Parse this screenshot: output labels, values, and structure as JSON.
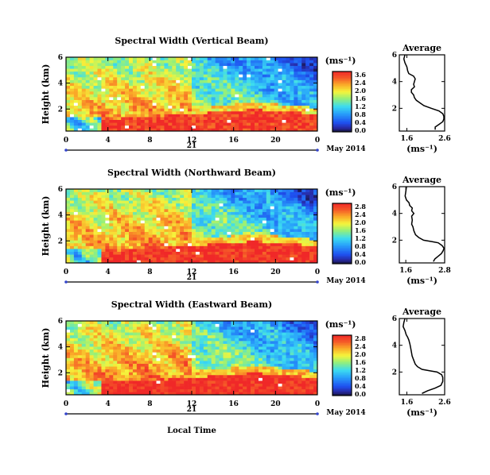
{
  "chart_data": [
    {
      "type": "heatmap",
      "title": "Spectral Width (Vertical Beam)",
      "ylabel": "Height (km)",
      "yticks": [
        "6",
        "4",
        "2"
      ],
      "ylim": [
        0.3,
        6
      ],
      "xticks": [
        "0",
        "4",
        "8",
        "12",
        "16",
        "20",
        "0"
      ],
      "xlim": [
        0,
        24
      ],
      "day_label": "21",
      "date_label": "May 2014",
      "colorbar": {
        "unit": "(ms⁻¹)",
        "ticks": [
          "3.6",
          "2.4",
          "2.0",
          "1.6",
          "1.2",
          "0.8",
          "0.4",
          "0.0"
        ]
      },
      "average": {
        "title": "Average",
        "xlabel": "(ms⁻¹)",
        "xticks": [
          "1.6",
          "2.6"
        ],
        "yticks": [
          "6",
          "4",
          "2"
        ],
        "xlim": [
          1.4,
          2.6
        ],
        "ylim": [
          0.3,
          6
        ],
        "profile": [
          [
            1.55,
            6.0
          ],
          [
            1.52,
            5.7
          ],
          [
            1.55,
            5.4
          ],
          [
            1.6,
            5.1
          ],
          [
            1.62,
            4.8
          ],
          [
            1.65,
            4.6
          ],
          [
            1.78,
            4.4
          ],
          [
            1.82,
            4.2
          ],
          [
            1.8,
            4.0
          ],
          [
            1.78,
            3.8
          ],
          [
            1.8,
            3.6
          ],
          [
            1.72,
            3.4
          ],
          [
            1.72,
            3.2
          ],
          [
            1.78,
            3.0
          ],
          [
            1.8,
            2.8
          ],
          [
            1.85,
            2.6
          ],
          [
            1.95,
            2.4
          ],
          [
            2.05,
            2.2
          ],
          [
            2.25,
            2.0
          ],
          [
            2.45,
            1.8
          ],
          [
            2.55,
            1.6
          ],
          [
            2.58,
            1.4
          ],
          [
            2.58,
            1.2
          ],
          [
            2.55,
            1.0
          ],
          [
            2.45,
            0.8
          ],
          [
            2.35,
            0.6
          ],
          [
            2.35,
            0.4
          ]
        ]
      },
      "regions": [
        {
          "x0": 3.5,
          "x1": 24,
          "y0": 0.3,
          "y1": 1.5,
          "level": 3.2,
          "note": "low-level red layer"
        },
        {
          "x0": 0,
          "x1": 12,
          "y0": 1.5,
          "y1": 4.0,
          "level": 2.4,
          "note": "mid-level orange/yellow"
        },
        {
          "x0": 12,
          "x1": 24,
          "y0": 2.0,
          "y1": 6.0,
          "level": 0.8,
          "note": "afternoon cyan/blue aloft"
        }
      ]
    },
    {
      "type": "heatmap",
      "title": "Spectral Width (Northward Beam)",
      "ylabel": "Height (km)",
      "yticks": [
        "6",
        "4",
        "2"
      ],
      "ylim": [
        0.3,
        6
      ],
      "xticks": [
        "0",
        "4",
        "8",
        "12",
        "16",
        "20",
        "0"
      ],
      "xlim": [
        0,
        24
      ],
      "day_label": "21",
      "date_label": "May 2014",
      "colorbar": {
        "unit": "(ms⁻¹)",
        "ticks": [
          "2.8",
          "2.4",
          "2.0",
          "1.6",
          "1.2",
          "0.8",
          "0.4",
          "0.0"
        ]
      },
      "average": {
        "title": "Average",
        "xlabel": "(ms⁻¹)",
        "xticks": [
          "1.6",
          "2.8"
        ],
        "yticks": [
          "6",
          "4",
          "2"
        ],
        "xlim": [
          1.4,
          2.8
        ],
        "ylim": [
          0.3,
          6
        ],
        "profile": [
          [
            1.62,
            6.0
          ],
          [
            1.6,
            5.6
          ],
          [
            1.58,
            5.3
          ],
          [
            1.62,
            5.0
          ],
          [
            1.7,
            4.8
          ],
          [
            1.72,
            4.6
          ],
          [
            1.8,
            4.4
          ],
          [
            1.78,
            4.2
          ],
          [
            1.85,
            4.0
          ],
          [
            1.78,
            3.8
          ],
          [
            1.8,
            3.5
          ],
          [
            1.78,
            3.2
          ],
          [
            1.82,
            3.0
          ],
          [
            1.85,
            2.7
          ],
          [
            1.9,
            2.4
          ],
          [
            2.0,
            2.2
          ],
          [
            2.15,
            2.0
          ],
          [
            2.4,
            1.9
          ],
          [
            2.6,
            1.8
          ],
          [
            2.72,
            1.6
          ],
          [
            2.78,
            1.4
          ],
          [
            2.75,
            1.2
          ],
          [
            2.7,
            1.0
          ],
          [
            2.6,
            0.8
          ],
          [
            2.5,
            0.6
          ],
          [
            2.45,
            0.4
          ]
        ]
      },
      "regions": [
        {
          "x0": 3.5,
          "x1": 24,
          "y0": 0.3,
          "y1": 1.6,
          "level": 2.6,
          "note": "low-level red layer"
        },
        {
          "x0": 0,
          "x1": 12,
          "y0": 1.6,
          "y1": 4.0,
          "level": 2.0,
          "note": "mid-level orange/yellow"
        },
        {
          "x0": 12,
          "x1": 24,
          "y0": 2.2,
          "y1": 6.0,
          "level": 0.7,
          "note": "afternoon blue aloft"
        }
      ]
    },
    {
      "type": "heatmap",
      "title": "Spectral Width (Eastward Beam)",
      "ylabel": "Height (km)",
      "yticks": [
        "6",
        "4",
        "2"
      ],
      "ylim": [
        0.3,
        6
      ],
      "xticks": [
        "0",
        "4",
        "8",
        "12",
        "16",
        "20",
        "0"
      ],
      "xlim": [
        0,
        24
      ],
      "day_label": "21",
      "date_label": "May 2014",
      "xlabel": "Local Time",
      "colorbar": {
        "unit": "(ms⁻¹)",
        "ticks": [
          "2.8",
          "2.4",
          "2.0",
          "1.6",
          "1.2",
          "0.8",
          "0.4",
          "0.0"
        ]
      },
      "average": {
        "title": "Average",
        "xlabel": "(ms⁻¹)",
        "xticks": [
          "1.6",
          "2.6"
        ],
        "yticks": [
          "6",
          "4",
          "2"
        ],
        "xlim": [
          1.4,
          2.6
        ],
        "ylim": [
          0.3,
          6
        ],
        "profile": [
          [
            1.55,
            6.0
          ],
          [
            1.52,
            5.7
          ],
          [
            1.5,
            5.4
          ],
          [
            1.55,
            5.1
          ],
          [
            1.58,
            4.8
          ],
          [
            1.62,
            4.6
          ],
          [
            1.65,
            4.4
          ],
          [
            1.68,
            4.1
          ],
          [
            1.7,
            3.8
          ],
          [
            1.72,
            3.5
          ],
          [
            1.74,
            3.2
          ],
          [
            1.78,
            2.9
          ],
          [
            1.82,
            2.6
          ],
          [
            1.88,
            2.4
          ],
          [
            2.0,
            2.2
          ],
          [
            2.2,
            2.1
          ],
          [
            2.4,
            2.0
          ],
          [
            2.52,
            1.8
          ],
          [
            2.55,
            1.6
          ],
          [
            2.55,
            1.3
          ],
          [
            2.5,
            1.0
          ],
          [
            2.35,
            0.8
          ],
          [
            2.15,
            0.6
          ],
          [
            2.0,
            0.4
          ]
        ]
      },
      "regions": [
        {
          "x0": 3.0,
          "x1": 24,
          "y0": 0.3,
          "y1": 1.6,
          "level": 2.6,
          "note": "low-level red layer"
        },
        {
          "x0": 0,
          "x1": 12,
          "y0": 1.6,
          "y1": 4.0,
          "level": 2.0,
          "note": "mid-level orange/yellow"
        },
        {
          "x0": 12,
          "x1": 24,
          "y0": 2.2,
          "y1": 6.0,
          "level": 0.8,
          "note": "afternoon blue aloft"
        }
      ]
    }
  ]
}
